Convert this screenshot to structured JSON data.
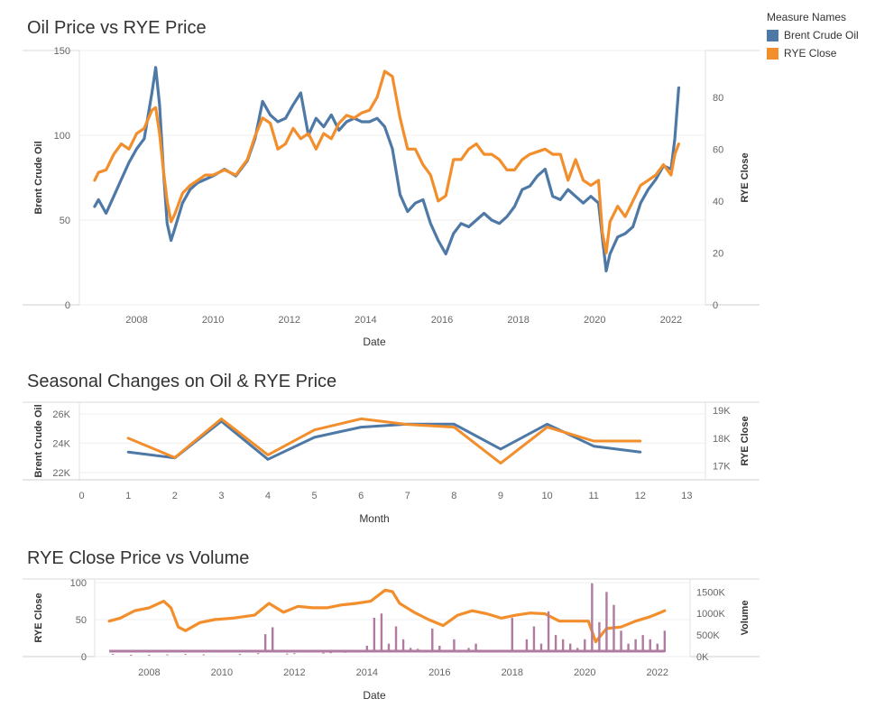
{
  "colors": {
    "oil": "#4e79a7",
    "rye": "#f28e2b",
    "volume": "#b07aa1"
  },
  "legend": {
    "title": "Measure Names",
    "items": [
      {
        "label": "Brent Crude Oil",
        "color": "#4e79a7"
      },
      {
        "label": "RYE Close",
        "color": "#f28e2b"
      }
    ]
  },
  "chart_data": [
    {
      "type": "line",
      "title": "Oil Price vs RYE Price",
      "xlabel": "Date",
      "ylabel_left": "Brent Crude Oil",
      "ylabel_right": "RYE Close",
      "x_ticks": [
        "2008",
        "2010",
        "2012",
        "2014",
        "2016",
        "2018",
        "2020",
        "2022"
      ],
      "y_left_ticks": [
        0,
        50,
        100,
        150
      ],
      "y_right_ticks": [
        0,
        20,
        40,
        60,
        80
      ],
      "ylim_left": [
        0,
        150
      ],
      "ylim_right": [
        0,
        98
      ],
      "series": [
        {
          "name": "Brent Crude Oil",
          "axis": "left",
          "x": [
            2006.9,
            2007.0,
            2007.2,
            2007.4,
            2007.6,
            2007.8,
            2008.0,
            2008.2,
            2008.4,
            2008.5,
            2008.6,
            2008.7,
            2008.8,
            2008.9,
            2009.0,
            2009.2,
            2009.4,
            2009.6,
            2009.8,
            2010.0,
            2010.3,
            2010.6,
            2010.9,
            2011.1,
            2011.3,
            2011.5,
            2011.7,
            2011.9,
            2012.1,
            2012.3,
            2012.5,
            2012.7,
            2012.9,
            2013.1,
            2013.3,
            2013.5,
            2013.7,
            2013.9,
            2014.1,
            2014.3,
            2014.5,
            2014.7,
            2014.9,
            2015.1,
            2015.3,
            2015.5,
            2015.7,
            2015.9,
            2016.1,
            2016.3,
            2016.5,
            2016.7,
            2016.9,
            2017.1,
            2017.3,
            2017.5,
            2017.7,
            2017.9,
            2018.1,
            2018.3,
            2018.5,
            2018.7,
            2018.9,
            2019.1,
            2019.3,
            2019.5,
            2019.7,
            2019.9,
            2020.1,
            2020.2,
            2020.3,
            2020.4,
            2020.6,
            2020.8,
            2021.0,
            2021.2,
            2021.4,
            2021.6,
            2021.8,
            2022.0,
            2022.1,
            2022.2
          ],
          "values": [
            58,
            62,
            54,
            64,
            74,
            84,
            92,
            98,
            125,
            140,
            118,
            80,
            48,
            38,
            45,
            60,
            68,
            72,
            74,
            76,
            80,
            76,
            85,
            98,
            120,
            112,
            108,
            110,
            118,
            125,
            100,
            110,
            105,
            112,
            103,
            108,
            110,
            108,
            108,
            110,
            105,
            92,
            65,
            55,
            60,
            62,
            48,
            38,
            30,
            42,
            48,
            46,
            50,
            54,
            50,
            48,
            52,
            58,
            68,
            70,
            76,
            80,
            64,
            62,
            68,
            64,
            60,
            64,
            60,
            40,
            20,
            30,
            40,
            42,
            46,
            60,
            68,
            74,
            82,
            80,
            98,
            128
          ]
        },
        {
          "name": "RYE Close",
          "axis": "right",
          "x": [
            2006.9,
            2007.0,
            2007.2,
            2007.4,
            2007.6,
            2007.8,
            2008.0,
            2008.2,
            2008.4,
            2008.5,
            2008.6,
            2008.7,
            2008.8,
            2008.9,
            2009.0,
            2009.2,
            2009.4,
            2009.6,
            2009.8,
            2010.0,
            2010.3,
            2010.6,
            2010.9,
            2011.1,
            2011.3,
            2011.5,
            2011.7,
            2011.9,
            2012.1,
            2012.3,
            2012.5,
            2012.7,
            2012.9,
            2013.1,
            2013.3,
            2013.5,
            2013.7,
            2013.9,
            2014.1,
            2014.3,
            2014.5,
            2014.7,
            2014.9,
            2015.1,
            2015.3,
            2015.5,
            2015.7,
            2015.9,
            2016.1,
            2016.3,
            2016.5,
            2016.7,
            2016.9,
            2017.1,
            2017.3,
            2017.5,
            2017.7,
            2017.9,
            2018.1,
            2018.3,
            2018.5,
            2018.7,
            2018.9,
            2019.1,
            2019.3,
            2019.5,
            2019.7,
            2019.9,
            2020.1,
            2020.2,
            2020.3,
            2020.4,
            2020.6,
            2020.8,
            2021.0,
            2021.2,
            2021.4,
            2021.6,
            2021.8,
            2022.0,
            2022.1,
            2022.2
          ],
          "values": [
            48,
            51,
            52,
            58,
            62,
            60,
            66,
            68,
            75,
            76,
            66,
            52,
            40,
            32,
            35,
            43,
            46,
            48,
            50,
            50,
            52,
            50,
            56,
            65,
            72,
            70,
            60,
            62,
            68,
            64,
            66,
            60,
            66,
            64,
            70,
            73,
            72,
            74,
            75,
            80,
            90,
            88,
            72,
            60,
            60,
            54,
            50,
            40,
            42,
            56,
            56,
            60,
            62,
            58,
            58,
            56,
            52,
            52,
            56,
            58,
            59,
            60,
            58,
            58,
            48,
            56,
            48,
            46,
            48,
            28,
            20,
            32,
            38,
            34,
            40,
            46,
            48,
            50,
            54,
            50,
            58,
            62
          ]
        }
      ]
    },
    {
      "type": "line",
      "title": "Seasonal Changes on Oil & RYE Price",
      "xlabel": "Month",
      "ylabel_left": "Brent Crude Oil",
      "ylabel_right": "RYE Close",
      "x_ticks": [
        0,
        1,
        2,
        3,
        4,
        5,
        6,
        7,
        8,
        9,
        10,
        11,
        12,
        13
      ],
      "y_left_ticks": [
        "22K",
        "24K",
        "26K"
      ],
      "y_right_ticks": [
        "17K",
        "18K",
        "19K"
      ],
      "ylim_left": [
        21500,
        26800
      ],
      "ylim_right": [
        16500,
        19300
      ],
      "series": [
        {
          "name": "Brent Crude Oil",
          "axis": "left",
          "x": [
            1,
            2,
            3,
            4,
            5,
            6,
            7,
            8,
            9,
            10,
            11,
            12
          ],
          "values": [
            23400,
            23000,
            25500,
            22900,
            24400,
            25100,
            25300,
            25300,
            23600,
            25300,
            23800,
            23400
          ]
        },
        {
          "name": "RYE Close",
          "axis": "right",
          "x": [
            1,
            2,
            3,
            4,
            5,
            6,
            7,
            8,
            9,
            10,
            11,
            12
          ],
          "values": [
            18000,
            17300,
            18700,
            17400,
            18300,
            18700,
            18500,
            18400,
            17100,
            18400,
            17900,
            17900
          ]
        }
      ]
    },
    {
      "type": "line",
      "title": "RYE Close Price vs Volume",
      "xlabel": "Date",
      "ylabel_left": "RYE Close",
      "ylabel_right": "Volume",
      "x_ticks": [
        "2008",
        "2010",
        "2012",
        "2014",
        "2016",
        "2018",
        "2020",
        "2022"
      ],
      "y_left_ticks": [
        0,
        50,
        100
      ],
      "y_right_ticks": [
        "0K",
        "500K",
        "1000K",
        "1500K"
      ],
      "ylim_left": [
        0,
        105
      ],
      "ylim_right": [
        0,
        1800000
      ],
      "series": [
        {
          "name": "RYE Close",
          "axis": "left",
          "x": [
            2006.9,
            2007.2,
            2007.6,
            2008.0,
            2008.4,
            2008.6,
            2008.8,
            2009.0,
            2009.4,
            2009.8,
            2010.3,
            2010.9,
            2011.3,
            2011.7,
            2012.1,
            2012.5,
            2012.9,
            2013.3,
            2013.7,
            2014.1,
            2014.5,
            2014.7,
            2014.9,
            2015.3,
            2015.7,
            2016.1,
            2016.5,
            2016.9,
            2017.3,
            2017.7,
            2018.1,
            2018.5,
            2018.9,
            2019.3,
            2019.7,
            2020.1,
            2020.3,
            2020.6,
            2021.0,
            2021.4,
            2021.8,
            2022.0,
            2022.2
          ],
          "values": [
            48,
            52,
            62,
            66,
            75,
            66,
            40,
            35,
            46,
            50,
            52,
            56,
            72,
            60,
            68,
            66,
            66,
            70,
            72,
            75,
            90,
            88,
            72,
            60,
            50,
            42,
            56,
            62,
            58,
            52,
            56,
            59,
            58,
            48,
            48,
            48,
            20,
            38,
            40,
            48,
            54,
            58,
            62
          ]
        },
        {
          "name": "Volume",
          "axis": "right",
          "kind": "bar",
          "x": [
            2007.0,
            2007.5,
            2008.0,
            2008.5,
            2009.0,
            2009.5,
            2010.0,
            2010.5,
            2011.0,
            2011.2,
            2011.4,
            2011.8,
            2012.0,
            2012.4,
            2012.8,
            2013.0,
            2013.4,
            2013.8,
            2014.0,
            2014.2,
            2014.4,
            2014.6,
            2014.8,
            2015.0,
            2015.2,
            2015.4,
            2015.8,
            2016.0,
            2016.4,
            2016.8,
            2017.0,
            2017.4,
            2017.8,
            2018.0,
            2018.4,
            2018.6,
            2018.8,
            2019.0,
            2019.2,
            2019.4,
            2019.6,
            2019.8,
            2020.0,
            2020.2,
            2020.4,
            2020.6,
            2020.8,
            2021.0,
            2021.2,
            2021.4,
            2021.6,
            2021.8,
            2022.0,
            2022.2
          ],
          "values": [
            60000,
            40000,
            40000,
            50000,
            60000,
            50000,
            120000,
            60000,
            80000,
            520000,
            680000,
            70000,
            80000,
            120000,
            90000,
            100000,
            110000,
            130000,
            250000,
            900000,
            1000000,
            300000,
            700000,
            400000,
            200000,
            180000,
            650000,
            250000,
            400000,
            200000,
            300000,
            120000,
            150000,
            900000,
            400000,
            700000,
            300000,
            1050000,
            500000,
            400000,
            300000,
            200000,
            400000,
            1700000,
            800000,
            1500000,
            1200000,
            600000,
            300000,
            400000,
            500000,
            400000,
            300000,
            600000
          ]
        }
      ]
    }
  ]
}
